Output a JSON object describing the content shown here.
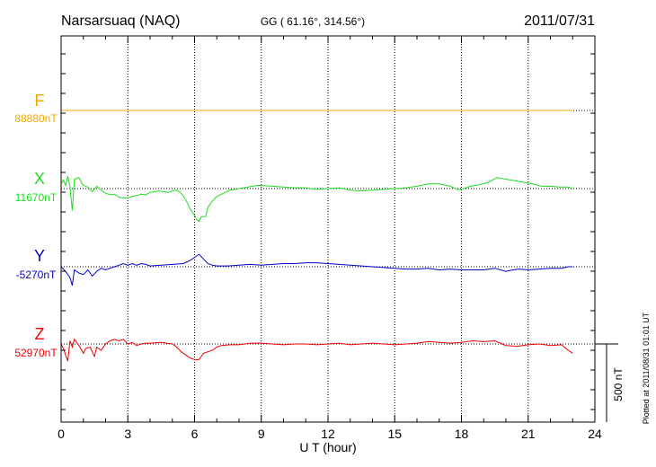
{
  "header": {
    "station": "Narsarsuaq (NAQ)",
    "coords": "GG ( 61.16°, 314.56°)",
    "date": "2011/07/31"
  },
  "footer": {
    "plotted": "Plotted at 2011/08/31 01:01 UT"
  },
  "chart_data": {
    "type": "line",
    "xlabel": "U T (hour)",
    "xlim": [
      0,
      24
    ],
    "xticks": [
      0,
      3,
      6,
      9,
      12,
      15,
      18,
      21,
      24
    ],
    "scale_bar": {
      "label": "500 nT",
      "value_nT": 500
    },
    "series": [
      {
        "name": "F",
        "baseline_label": "88880nT",
        "baseline_nT": 88880,
        "color": "#f0a800",
        "points": [
          [
            0,
            0
          ],
          [
            23,
            0
          ]
        ]
      },
      {
        "name": "X",
        "baseline_label": "11670nT",
        "baseline_nT": 11670,
        "color": "#22dd22",
        "points": [
          [
            0,
            30
          ],
          [
            0.1,
            55
          ],
          [
            0.2,
            20
          ],
          [
            0.3,
            80
          ],
          [
            0.4,
            10
          ],
          [
            0.5,
            -140
          ],
          [
            0.6,
            60
          ],
          [
            0.8,
            70
          ],
          [
            0.9,
            40
          ],
          [
            1.0,
            20
          ],
          [
            1.2,
            10
          ],
          [
            1.4,
            -20
          ],
          [
            1.6,
            15
          ],
          [
            1.7,
            0
          ],
          [
            1.9,
            -20
          ],
          [
            2.0,
            -30
          ],
          [
            2.2,
            -40
          ],
          [
            2.4,
            -35
          ],
          [
            2.6,
            -55
          ],
          [
            2.8,
            -60
          ],
          [
            3.0,
            -60
          ],
          [
            3.2,
            -50
          ],
          [
            3.4,
            -45
          ],
          [
            3.6,
            -35
          ],
          [
            3.8,
            -40
          ],
          [
            4.0,
            -25
          ],
          [
            4.2,
            -20
          ],
          [
            4.4,
            -15
          ],
          [
            4.6,
            -20
          ],
          [
            4.8,
            -25
          ],
          [
            5.0,
            -15
          ],
          [
            5.2,
            -10
          ],
          [
            5.4,
            -30
          ],
          [
            5.6,
            -70
          ],
          [
            5.8,
            -130
          ],
          [
            6.0,
            -170
          ],
          [
            6.1,
            -200
          ],
          [
            6.2,
            -210
          ],
          [
            6.3,
            -180
          ],
          [
            6.5,
            -180
          ],
          [
            6.6,
            -120
          ],
          [
            6.8,
            -80
          ],
          [
            7.0,
            -50
          ],
          [
            7.3,
            -30
          ],
          [
            7.6,
            -10
          ],
          [
            8.0,
            0
          ],
          [
            8.4,
            10
          ],
          [
            8.8,
            20
          ],
          [
            9.0,
            20
          ],
          [
            9.5,
            15
          ],
          [
            10.0,
            10
          ],
          [
            10.5,
            5
          ],
          [
            11.0,
            5
          ],
          [
            11.5,
            -5
          ],
          [
            12.0,
            0
          ],
          [
            12.5,
            5
          ],
          [
            13.0,
            -10
          ],
          [
            13.5,
            -15
          ],
          [
            14.0,
            -10
          ],
          [
            14.5,
            -5
          ],
          [
            15.0,
            0
          ],
          [
            15.5,
            5
          ],
          [
            16.0,
            15
          ],
          [
            16.5,
            30
          ],
          [
            17.0,
            30
          ],
          [
            17.5,
            15
          ],
          [
            17.8,
            -5
          ],
          [
            18.0,
            -5
          ],
          [
            18.4,
            15
          ],
          [
            18.8,
            25
          ],
          [
            19.2,
            40
          ],
          [
            19.6,
            70
          ],
          [
            20.0,
            60
          ],
          [
            20.4,
            50
          ],
          [
            20.8,
            40
          ],
          [
            21.2,
            30
          ],
          [
            21.6,
            15
          ],
          [
            22.0,
            15
          ],
          [
            22.4,
            10
          ],
          [
            22.8,
            10
          ],
          [
            23.0,
            0
          ]
        ]
      },
      {
        "name": "Y",
        "baseline_label": "-5270nT",
        "baseline_nT": -5270,
        "color": "#0000cc",
        "points": [
          [
            0,
            0
          ],
          [
            0.2,
            -30
          ],
          [
            0.4,
            -70
          ],
          [
            0.5,
            -120
          ],
          [
            0.6,
            -20
          ],
          [
            0.8,
            -40
          ],
          [
            1.0,
            -50
          ],
          [
            1.2,
            -20
          ],
          [
            1.4,
            -60
          ],
          [
            1.6,
            -30
          ],
          [
            1.8,
            -10
          ],
          [
            2.0,
            -20
          ],
          [
            2.2,
            -10
          ],
          [
            2.4,
            0
          ],
          [
            2.6,
            10
          ],
          [
            2.8,
            20
          ],
          [
            3.0,
            10
          ],
          [
            3.2,
            20
          ],
          [
            3.4,
            10
          ],
          [
            3.6,
            20
          ],
          [
            3.8,
            15
          ],
          [
            4.0,
            5
          ],
          [
            4.5,
            10
          ],
          [
            5.0,
            15
          ],
          [
            5.5,
            20
          ],
          [
            5.8,
            40
          ],
          [
            6.0,
            60
          ],
          [
            6.2,
            80
          ],
          [
            6.4,
            50
          ],
          [
            6.6,
            20
          ],
          [
            6.8,
            10
          ],
          [
            7.0,
            5
          ],
          [
            7.5,
            5
          ],
          [
            8.0,
            10
          ],
          [
            8.5,
            15
          ],
          [
            9.0,
            10
          ],
          [
            9.5,
            15
          ],
          [
            10.0,
            20
          ],
          [
            10.5,
            20
          ],
          [
            11.0,
            25
          ],
          [
            11.5,
            25
          ],
          [
            12.0,
            20
          ],
          [
            12.5,
            15
          ],
          [
            13.0,
            10
          ],
          [
            13.5,
            5
          ],
          [
            14.0,
            0
          ],
          [
            14.5,
            -5
          ],
          [
            15.0,
            -10
          ],
          [
            15.5,
            -15
          ],
          [
            16.0,
            -15
          ],
          [
            16.5,
            -10
          ],
          [
            17.0,
            -20
          ],
          [
            17.5,
            -15
          ],
          [
            18.0,
            -20
          ],
          [
            18.5,
            -20
          ],
          [
            19.0,
            -20
          ],
          [
            19.5,
            -10
          ],
          [
            20.0,
            -30
          ],
          [
            20.3,
            -20
          ],
          [
            20.6,
            -15
          ],
          [
            21.0,
            -20
          ],
          [
            21.5,
            -15
          ],
          [
            22.0,
            -10
          ],
          [
            22.5,
            -10
          ],
          [
            22.8,
            0
          ],
          [
            23.0,
            0
          ]
        ]
      },
      {
        "name": "Z",
        "baseline_label": "52970nT",
        "baseline_nT": 52970,
        "color": "#ee0000",
        "points": [
          [
            0,
            0
          ],
          [
            0.1,
            -30
          ],
          [
            0.3,
            -110
          ],
          [
            0.4,
            20
          ],
          [
            0.5,
            -20
          ],
          [
            0.6,
            30
          ],
          [
            0.8,
            -10
          ],
          [
            1.0,
            -60
          ],
          [
            1.1,
            -30
          ],
          [
            1.3,
            -20
          ],
          [
            1.5,
            -80
          ],
          [
            1.6,
            -20
          ],
          [
            1.8,
            -40
          ],
          [
            2.0,
            0
          ],
          [
            2.2,
            20
          ],
          [
            2.4,
            30
          ],
          [
            2.6,
            20
          ],
          [
            2.8,
            30
          ],
          [
            3.0,
            0
          ],
          [
            3.2,
            10
          ],
          [
            3.4,
            -10
          ],
          [
            3.6,
            0
          ],
          [
            3.8,
            5
          ],
          [
            4.0,
            5
          ],
          [
            4.5,
            10
          ],
          [
            5.0,
            0
          ],
          [
            5.2,
            -20
          ],
          [
            5.4,
            -50
          ],
          [
            5.6,
            -70
          ],
          [
            5.8,
            -90
          ],
          [
            6.0,
            -100
          ],
          [
            6.2,
            -100
          ],
          [
            6.4,
            -60
          ],
          [
            6.6,
            -50
          ],
          [
            6.8,
            -40
          ],
          [
            7.0,
            -20
          ],
          [
            7.2,
            -10
          ],
          [
            7.6,
            -5
          ],
          [
            8.0,
            -5
          ],
          [
            8.5,
            5
          ],
          [
            9.0,
            5
          ],
          [
            9.5,
            0
          ],
          [
            10.0,
            -5
          ],
          [
            10.5,
            0
          ],
          [
            11.0,
            0
          ],
          [
            11.5,
            -5
          ],
          [
            12.0,
            0
          ],
          [
            12.5,
            5
          ],
          [
            13.0,
            -5
          ],
          [
            13.5,
            0
          ],
          [
            14.0,
            5
          ],
          [
            14.5,
            0
          ],
          [
            15.0,
            -5
          ],
          [
            15.5,
            0
          ],
          [
            16.0,
            5
          ],
          [
            16.5,
            15
          ],
          [
            17.0,
            10
          ],
          [
            17.5,
            5
          ],
          [
            18.0,
            10
          ],
          [
            18.5,
            20
          ],
          [
            19.0,
            15
          ],
          [
            19.5,
            20
          ],
          [
            20.0,
            -10
          ],
          [
            20.5,
            -15
          ],
          [
            21.0,
            -5
          ],
          [
            21.5,
            0
          ],
          [
            22.0,
            -10
          ],
          [
            22.5,
            -5
          ],
          [
            22.8,
            -40
          ],
          [
            23.0,
            -60
          ]
        ]
      }
    ]
  }
}
